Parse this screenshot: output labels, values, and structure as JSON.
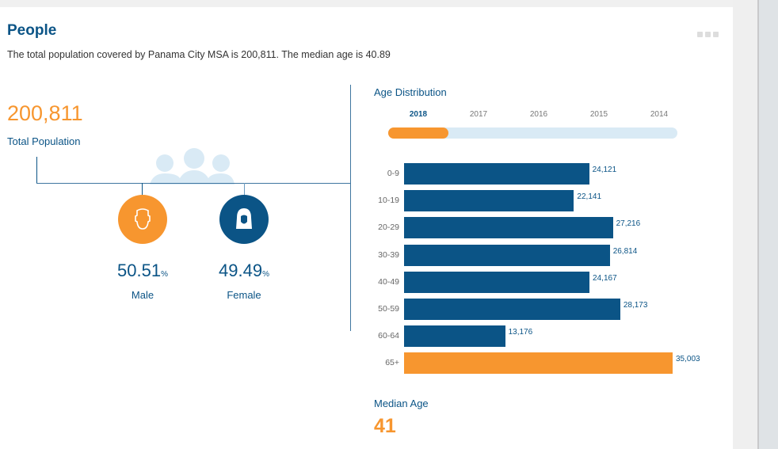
{
  "header": {
    "title": "People",
    "subtitle": "The total population covered by Panama City MSA is 200,811. The median age is 40.89"
  },
  "population": {
    "total": "200,811",
    "label": "Total Population"
  },
  "gender": [
    {
      "name": "male",
      "value": "50.51",
      "unit": "%",
      "label": "Male",
      "color": "#f7962f"
    },
    {
      "name": "female",
      "value": "49.49",
      "unit": "%",
      "label": "Female",
      "color": "#0b5486"
    }
  ],
  "age_distribution": {
    "title": "Age Distribution",
    "years": [
      "2018",
      "2017",
      "2016",
      "2015",
      "2014"
    ],
    "selected_year": "2018",
    "timeline_progress": 0.2
  },
  "chart_data": {
    "type": "bar",
    "orientation": "horizontal",
    "title": "Age Distribution",
    "categories": [
      "0-9",
      "10-19",
      "20-29",
      "30-39",
      "40-49",
      "50-59",
      "60-64",
      "65+"
    ],
    "values": [
      24121,
      22141,
      27216,
      26814,
      24167,
      28173,
      13176,
      35003
    ],
    "labels": [
      "24,121",
      "22,141",
      "27,216",
      "26,814",
      "24,167",
      "28,173",
      "13,176",
      "35,003"
    ],
    "colors": {
      "default": "#0b5486",
      "highlight": "#f7962f"
    },
    "highlight_index": 7
  },
  "median": {
    "label": "Median Age",
    "value": "41"
  }
}
